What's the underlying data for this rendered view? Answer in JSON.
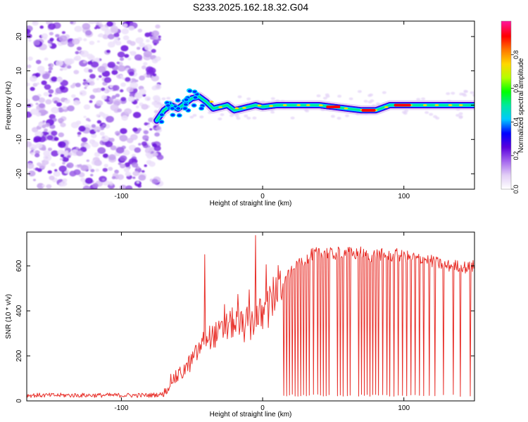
{
  "figure_title": "S233.2025.162.18.32.G04",
  "chart_data": [
    {
      "type": "heatmap",
      "title": "S233.2025.162.18.32.G04",
      "xlabel": "Height of straight line (km)",
      "ylabel": "Frequency (Hz)",
      "xlim": [
        -167,
        150
      ],
      "ylim": [
        -24.5,
        24.5
      ],
      "x_ticks": [
        -100,
        0,
        100
      ],
      "y_ticks": [
        -20,
        -10,
        0,
        10,
        20
      ],
      "noise_region_x": [
        -167,
        -75
      ],
      "signal_track": {
        "x": [
          -75,
          -70,
          -65,
          -60,
          -55,
          -50,
          -45,
          -40,
          -35,
          -30,
          -25,
          -20,
          -15,
          -10,
          -5,
          0,
          10,
          20,
          30,
          40,
          50,
          60,
          70,
          80,
          90,
          100,
          110,
          120,
          130,
          140,
          150
        ],
        "freq_hz": [
          -4.5,
          -1.5,
          0,
          -1,
          0.5,
          2,
          2.5,
          1,
          -1,
          -0.5,
          0,
          -1.5,
          -1,
          -0.5,
          0,
          -0.5,
          0,
          0,
          0,
          0,
          -0.5,
          -1,
          -1.5,
          -1.5,
          0,
          0,
          0,
          0,
          0,
          0,
          0
        ],
        "peak_amplitude_regions_x": [
          [
            45,
            55
          ],
          [
            70,
            80
          ],
          [
            93,
            105
          ]
        ]
      },
      "colorbar": {
        "label": "Normalized spectral amplitude",
        "ticks": [
          "0.0",
          "0.2",
          "0.4",
          "0.6",
          "0.8"
        ],
        "range": [
          0,
          1
        ],
        "colors": [
          "#ffffff",
          "#e2cdf6",
          "#a466ee",
          "#5a00dc",
          "#0000ff",
          "#00c8ff",
          "#00e8a0",
          "#00ff00",
          "#b4ff00",
          "#ffd700",
          "#ff7800",
          "#ff0000",
          "#ff1493"
        ]
      }
    },
    {
      "type": "line",
      "xlabel": "Height of straight line (km)",
      "ylabel": "SNR (10 * v/v)",
      "xlim": [
        -167,
        150
      ],
      "ylim": [
        0,
        750
      ],
      "x_ticks": [
        -100,
        0,
        100
      ],
      "y_ticks": [
        0,
        200,
        400,
        600
      ],
      "line_color": "#e8302a",
      "series": [
        {
          "x": [
            -167,
            -140,
            -110,
            -80,
            -70,
            -65,
            -60,
            -55,
            -50,
            -45,
            -40,
            -35,
            -30,
            -25,
            -20,
            -15,
            -10,
            -5,
            0,
            5,
            10,
            15,
            20,
            25,
            30,
            35,
            40,
            45,
            50,
            55,
            60,
            65,
            70,
            75,
            80,
            85,
            90,
            95,
            100,
            105,
            110,
            115,
            120,
            125,
            130,
            135,
            140,
            145,
            150
          ],
          "values": [
            25,
            25,
            25,
            25,
            30,
            90,
            110,
            140,
            180,
            230,
            280,
            290,
            300,
            330,
            350,
            330,
            340,
            360,
            380,
            420,
            500,
            530,
            570,
            600,
            630,
            650,
            660,
            660,
            650,
            660,
            660,
            650,
            660,
            640,
            650,
            650,
            640,
            650,
            640,
            640,
            630,
            630,
            620,
            610,
            600,
            600,
            600,
            590,
            600
          ]
        }
      ],
      "dropouts_x": [
        15,
        17,
        19,
        21,
        23,
        25,
        27,
        29,
        31,
        33,
        36,
        39,
        41,
        43,
        45,
        47,
        53,
        55,
        57,
        60,
        62,
        68,
        70,
        72,
        74,
        76,
        78,
        80,
        82,
        85,
        88,
        90,
        93,
        96,
        99,
        102,
        105,
        108,
        111,
        114,
        118,
        122,
        128,
        135,
        140,
        147
      ],
      "spikes": [
        {
          "x": -41,
          "y": 650
        },
        {
          "x": -5,
          "y": 735
        }
      ]
    }
  ]
}
